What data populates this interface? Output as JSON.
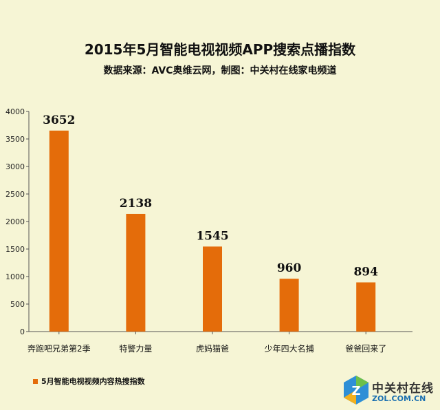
{
  "chart_data": {
    "type": "bar",
    "title": "2015年5月智能电视视频APP搜索点播指数",
    "subtitle": "数据来源：AVC奥维云网，制图：中关村在线家电频道",
    "categories": [
      "奔跑吧兄弟第2季",
      "特警力量",
      "虎妈猫爸",
      "少年四大名捕",
      "爸爸回来了"
    ],
    "series": [
      {
        "name": "5月智能电视视频内容热搜指数",
        "values": [
          3652,
          2138,
          1545,
          960,
          894
        ]
      }
    ],
    "data_labels": [
      "3652",
      "2138",
      "1545",
      "960",
      "894"
    ],
    "ylim": [
      0,
      4000
    ],
    "yticks": [
      "0",
      "500",
      "1000",
      "1500",
      "2000",
      "2500",
      "3000",
      "3500",
      "4000"
    ],
    "grid": false,
    "legend_position": "bottom-left",
    "bar_color": "#e46c0a",
    "background_color": "#f6f5d5"
  },
  "watermark": {
    "name_cn": "中关村在线",
    "domain": "ZOL.COM.CN"
  }
}
